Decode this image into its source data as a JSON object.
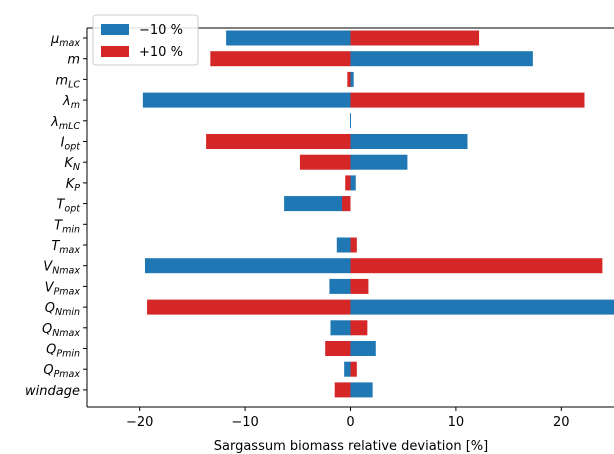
{
  "chart_data": {
    "type": "bar",
    "orientation": "horizontal",
    "xlabel": "Sargassum biomass relative deviation [%]",
    "ylabel": "",
    "xlim": [
      -25,
      25
    ],
    "xticks": [
      -20,
      -10,
      0,
      10,
      20
    ],
    "xtick_labels": [
      "−20",
      "−10",
      "0",
      "10",
      "20"
    ],
    "grid": false,
    "legend_position": "top-left",
    "categories": [
      {
        "base": "μ",
        "sub": "max"
      },
      {
        "base": "m",
        "sub": ""
      },
      {
        "base": "m",
        "sub": "LC"
      },
      {
        "base": "λ",
        "sub": "m"
      },
      {
        "base": "λ",
        "sub": "mLC"
      },
      {
        "base": "I",
        "sub": "opt"
      },
      {
        "base": "K",
        "sub": "N"
      },
      {
        "base": "K",
        "sub": "P"
      },
      {
        "base": "T",
        "sub": "opt"
      },
      {
        "base": "T",
        "sub": "min"
      },
      {
        "base": "T",
        "sub": "max"
      },
      {
        "base": "V",
        "sub": "Nmax"
      },
      {
        "base": "V",
        "sub": "Pmax"
      },
      {
        "base": "Q",
        "sub": "Nmin"
      },
      {
        "base": "Q",
        "sub": "Nmax"
      },
      {
        "base": "Q",
        "sub": "Pmin"
      },
      {
        "base": "Q",
        "sub": "Pmax"
      },
      {
        "base": "windage",
        "sub": ""
      }
    ],
    "series": [
      {
        "name": "−10 %",
        "color": "#1f77b4",
        "values": [
          -11.8,
          17.3,
          0.3,
          -19.7,
          0.0,
          11.1,
          5.4,
          0.5,
          -6.3,
          0.0,
          -1.3,
          -19.5,
          -2.0,
          25.0,
          -1.9,
          2.4,
          -0.6,
          2.1
        ]
      },
      {
        "name": "+10 %",
        "color": "#d62728",
        "values": [
          12.2,
          -13.3,
          -0.3,
          22.2,
          0.0,
          -13.7,
          -4.8,
          -0.5,
          -0.8,
          0.0,
          0.6,
          23.9,
          1.7,
          -19.3,
          1.6,
          -2.4,
          0.6,
          -1.5
        ]
      }
    ]
  }
}
